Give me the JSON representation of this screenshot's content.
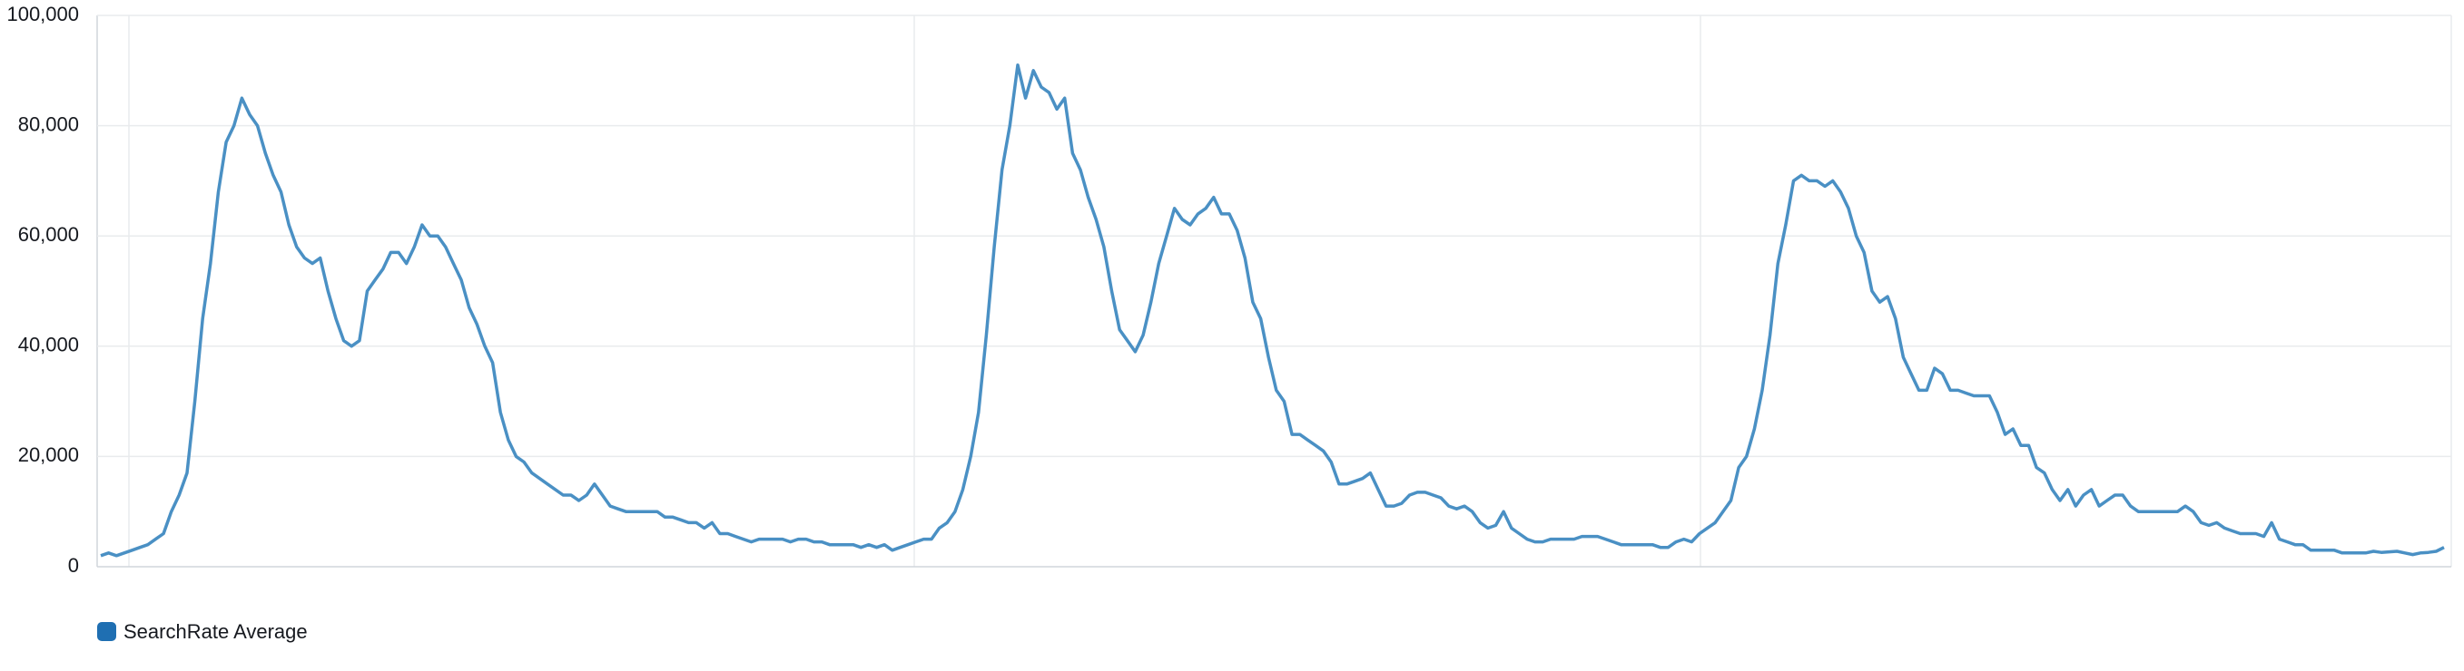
{
  "chart_data": {
    "type": "line",
    "series": [
      {
        "name": "SearchRate Average",
        "color": "#4a90c4",
        "values": [
          2000,
          2500,
          2000,
          2500,
          3000,
          3500,
          4000,
          5000,
          6000,
          10000,
          13000,
          17000,
          30000,
          45000,
          55000,
          68000,
          77000,
          80000,
          85000,
          82000,
          80000,
          75000,
          71000,
          68000,
          62000,
          58000,
          56000,
          55000,
          56000,
          50000,
          45000,
          41000,
          40000,
          41000,
          50000,
          52000,
          54000,
          57000,
          57000,
          55000,
          58000,
          62000,
          60000,
          60000,
          58000,
          55000,
          52000,
          47000,
          44000,
          40000,
          37000,
          28000,
          23000,
          20000,
          19000,
          17000,
          16000,
          15000,
          14000,
          13000,
          13000,
          12000,
          13000,
          15000,
          13000,
          11000,
          10500,
          10000,
          10000,
          10000,
          10000,
          10000,
          9000,
          9000,
          8500,
          8000,
          8000,
          7000,
          8000,
          6000,
          6000,
          5500,
          5000,
          4500,
          5000,
          5000,
          5000,
          5000,
          4500,
          5000,
          5000,
          4500,
          4500,
          4000,
          4000,
          4000,
          4000,
          3500,
          4000,
          3500,
          4000,
          3000,
          3500,
          4000,
          4500,
          5000,
          5000,
          7000,
          8000,
          10000,
          14000,
          20000,
          28000,
          42000,
          58000,
          72000,
          80000,
          91000,
          85000,
          90000,
          87000,
          86000,
          83000,
          85000,
          75000,
          72000,
          67000,
          63000,
          58000,
          50000,
          43000,
          41000,
          39000,
          42000,
          48000,
          55000,
          60000,
          65000,
          63000,
          62000,
          64000,
          65000,
          67000,
          64000,
          64000,
          61000,
          56000,
          48000,
          45000,
          38000,
          32000,
          30000,
          24000,
          24000,
          23000,
          22000,
          21000,
          19000,
          15000,
          15000,
          15500,
          16000,
          17000,
          14000,
          11000,
          11000,
          11500,
          13000,
          13500,
          13500,
          13000,
          12500,
          11000,
          10500,
          11000,
          10000,
          8000,
          7000,
          7500,
          10000,
          7000,
          6000,
          5000,
          4500,
          4500,
          5000,
          5000,
          5000,
          5000,
          5500,
          5500,
          5500,
          5000,
          4500,
          4000,
          4000,
          4000,
          4000,
          4000,
          3500,
          3500,
          4500,
          5000,
          4500,
          6000,
          7000,
          8000,
          10000,
          12000,
          18000,
          20000,
          25000,
          32000,
          42000,
          55000,
          62000,
          70000,
          71000,
          70000,
          70000,
          69000,
          70000,
          68000,
          65000,
          60000,
          57000,
          50000,
          48000,
          49000,
          45000,
          38000,
          35000,
          32000,
          32000,
          36000,
          35000,
          32000,
          32000,
          31500,
          31000,
          31000,
          31000,
          28000,
          24000,
          25000,
          22000,
          22000,
          18000,
          17000,
          14000,
          12000,
          14000,
          11000,
          13000,
          14000,
          11000,
          12000,
          13000,
          13000,
          11000,
          10000,
          10000,
          10000,
          10000,
          10000,
          10000,
          11000,
          10000,
          8000,
          7500,
          8000,
          7000,
          6500,
          6000,
          6000,
          6000,
          5500,
          8000,
          5000,
          4500,
          4000,
          4000,
          3000,
          3000,
          3000,
          3000,
          2500,
          2500,
          2500,
          2500,
          2800,
          2600,
          2700,
          2800,
          2500,
          2200,
          2500,
          2600,
          2800,
          3500
        ]
      }
    ],
    "legend_color": "#1f6fb2",
    "ylim": [
      0,
      100000
    ],
    "yticks": [
      0,
      {
        "value": 20000,
        "label": "20,000"
      },
      {
        "value": 40000,
        "label": "40,000"
      },
      {
        "value": 60000,
        "label": "60,000"
      },
      {
        "value": 80000,
        "label": "80,000"
      },
      {
        "value": 100000,
        "label": "100,000"
      }
    ],
    "grid": true
  }
}
